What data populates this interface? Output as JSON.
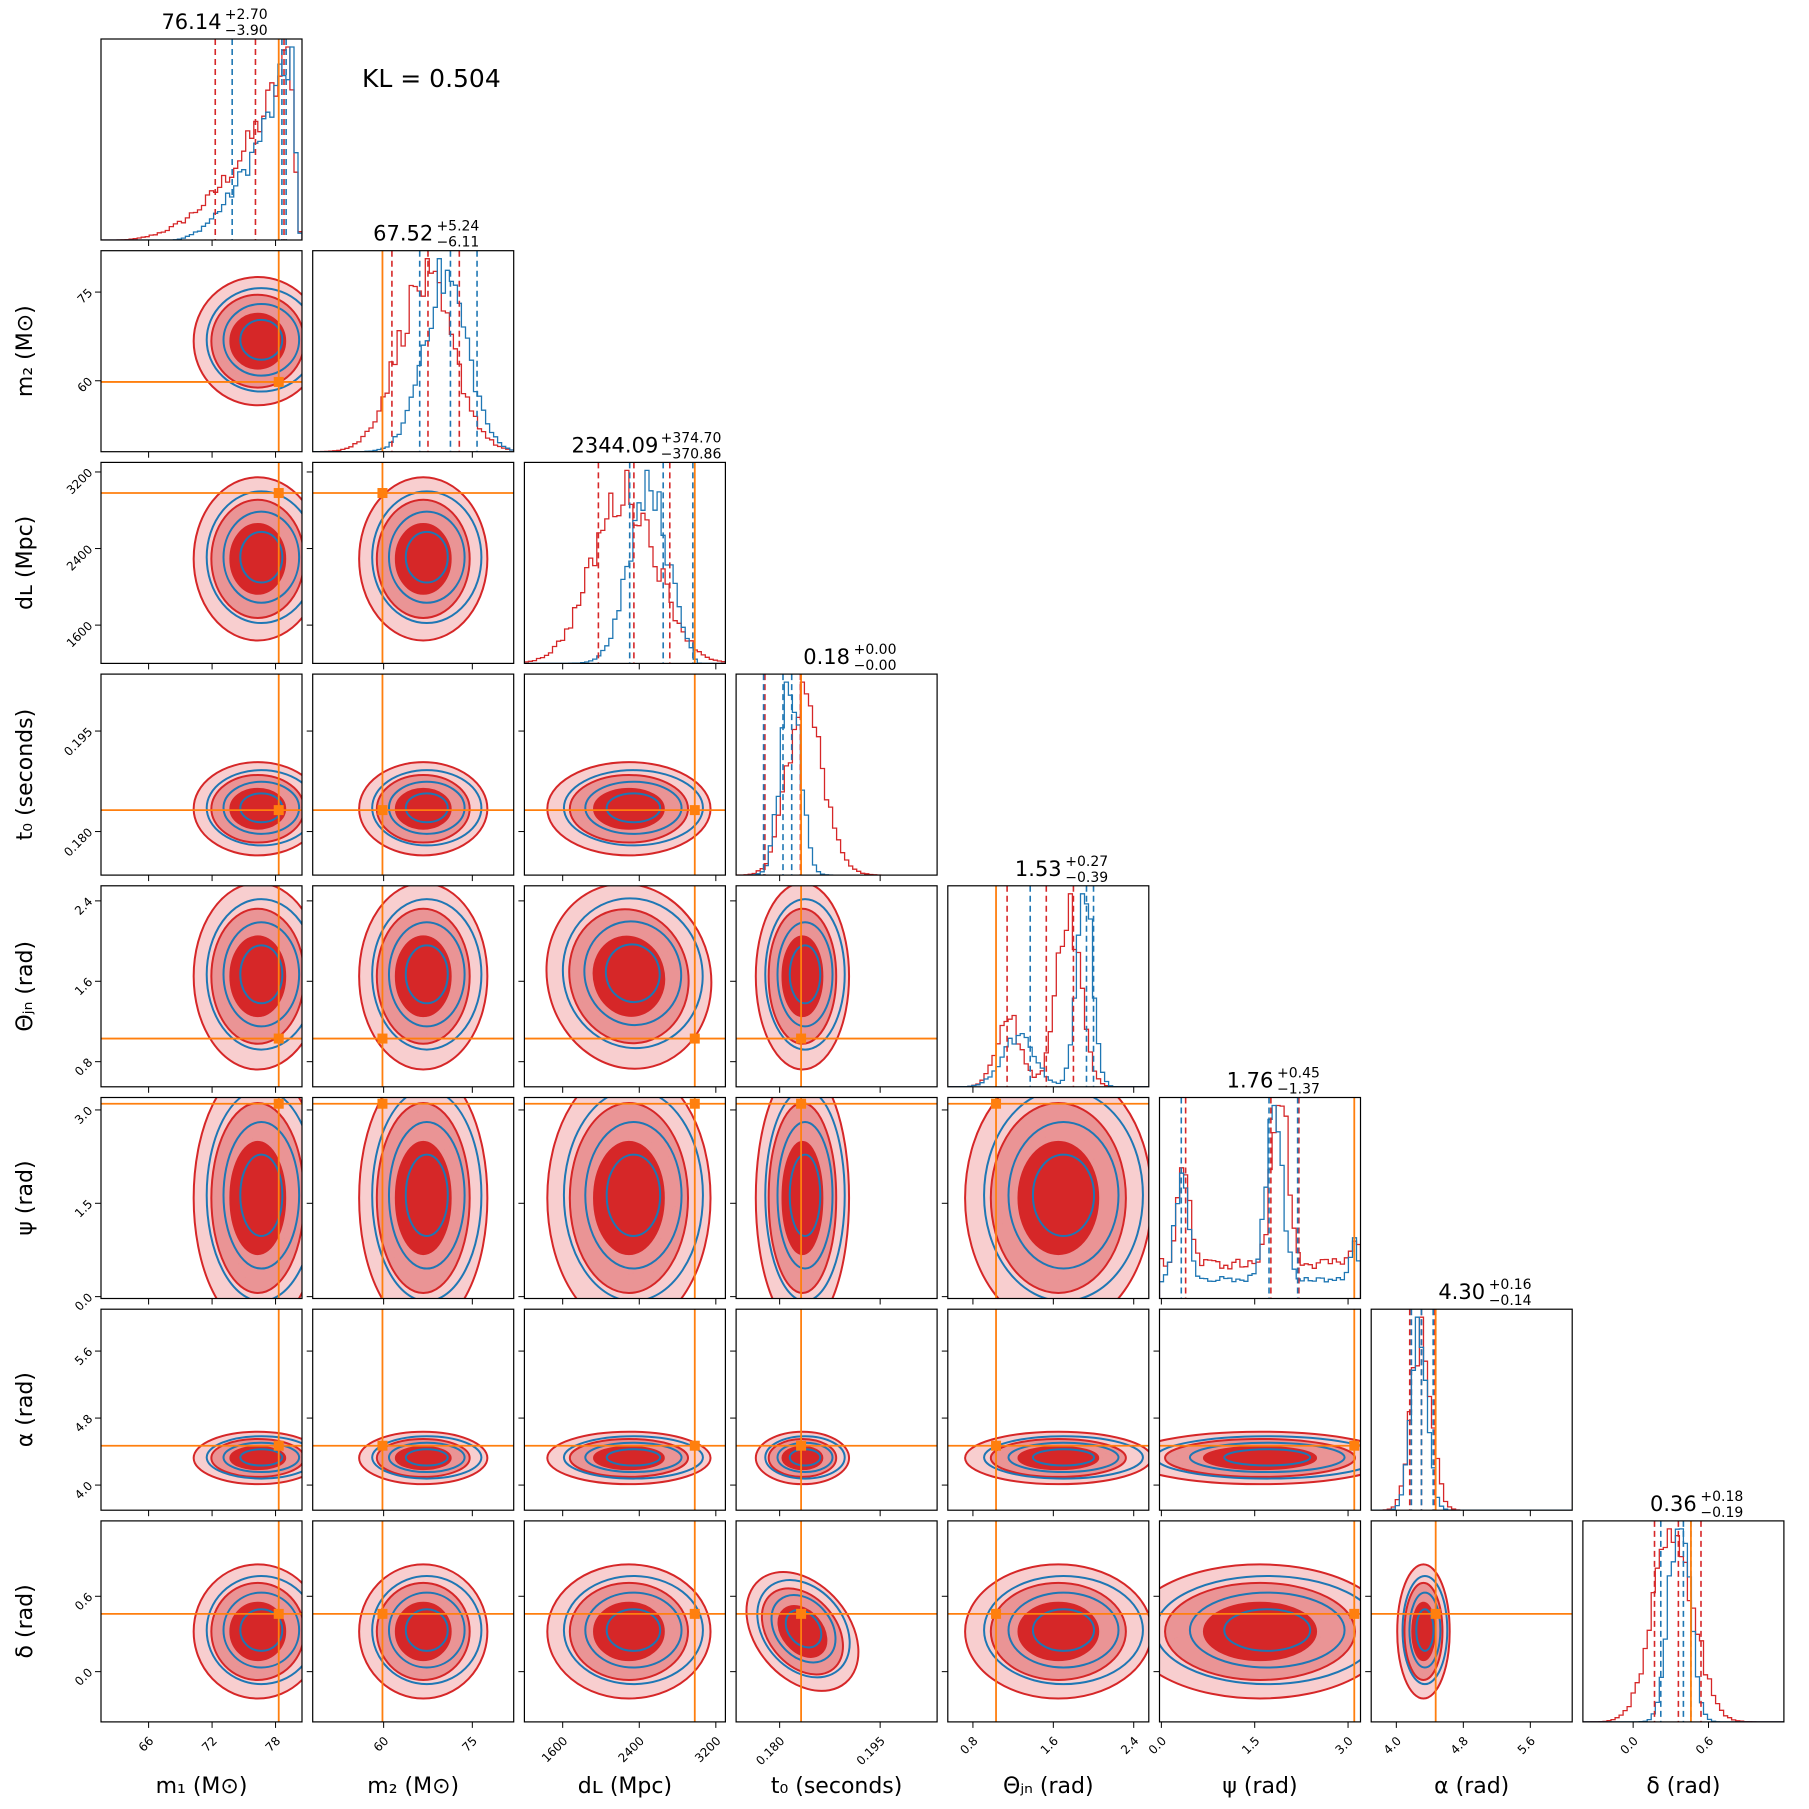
{
  "annotation": "KL = 0.504",
  "colors": {
    "red": "#d62728",
    "blue": "#1f77b4",
    "orange": "#ff7f0e"
  },
  "chart_data": {
    "type": "scatter",
    "subtype": "corner",
    "grid": false,
    "params": [
      {
        "key": "m1",
        "label": "m₁ (M⊙)",
        "range": [
          61.5,
          80.5
        ],
        "ticks": [
          "66",
          "72",
          "78"
        ],
        "tickvals": [
          66,
          72,
          78
        ],
        "title_median": "76.14",
        "title_plus": "+2.70",
        "title_minus": "−3.90",
        "truth": 78.3,
        "red_q": [
          72.3,
          76.1,
          78.8
        ],
        "blue_q": [
          73.9,
          78.6,
          79.0
        ]
      },
      {
        "key": "m2",
        "label": "m₂ (M⊙)",
        "range": [
          48,
          82
        ],
        "ticks": [
          "60",
          "75"
        ],
        "tickvals": [
          60,
          75
        ],
        "title_median": "67.52",
        "title_plus": "+5.24",
        "title_minus": "−6.11",
        "truth": 59.8,
        "red_q": [
          61.4,
          67.5,
          72.8
        ],
        "blue_q": [
          66.1,
          71.3,
          75.8
        ]
      },
      {
        "key": "dL",
        "label": "dʟ (Mpc)",
        "range": [
          1200,
          3300
        ],
        "ticks": [
          "1600",
          "2400",
          "3200"
        ],
        "tickvals": [
          1600,
          2400,
          3200
        ],
        "title_median": "2344.09",
        "title_plus": "+374.70",
        "title_minus": "−370.86",
        "truth": 2980,
        "red_q": [
          1973,
          2344,
          2719
        ],
        "blue_q": [
          2300,
          2650,
          2960
        ]
      },
      {
        "key": "t0",
        "label": "t₀ (seconds)",
        "range": [
          0.1735,
          0.2035
        ],
        "ticks": [
          "0.180",
          "0.195"
        ],
        "tickvals": [
          0.18,
          0.195
        ],
        "title_median": "0.18",
        "title_plus": "+0.00",
        "title_minus": "−0.00",
        "truth": 0.1832,
        "red_q": [
          0.1778,
          0.1831,
          0.1832
        ],
        "blue_q": [
          0.1776,
          0.1805,
          0.1818
        ]
      },
      {
        "key": "thetajn",
        "label": "Θⱼₙ (rad)",
        "range": [
          0.55,
          2.55
        ],
        "ticks": [
          "0.8",
          "1.6",
          "2.4"
        ],
        "tickvals": [
          0.8,
          1.6,
          2.4
        ],
        "title_median": "1.53",
        "title_plus": "+0.27",
        "title_minus": "−0.39",
        "truth": 1.03,
        "red_q": [
          1.14,
          1.53,
          1.8
        ],
        "blue_q": [
          1.37,
          1.93,
          2.0
        ]
      },
      {
        "key": "psi",
        "label": "ψ (rad)",
        "range": [
          -0.03,
          3.2
        ],
        "ticks": [
          "0.0",
          "1.5",
          "3.0"
        ],
        "tickvals": [
          0.0,
          1.5,
          3.0
        ],
        "title_median": "1.76",
        "title_plus": "+0.45",
        "title_minus": "−1.37",
        "truth": 3.1,
        "red_q": [
          0.39,
          1.76,
          2.21
        ],
        "blue_q": [
          0.32,
          1.73,
          2.19
        ]
      },
      {
        "key": "alpha",
        "label": "α (rad)",
        "range": [
          3.7,
          6.1
        ],
        "ticks": [
          "4.0",
          "4.8",
          "5.6"
        ],
        "tickvals": [
          4.0,
          4.8,
          5.6
        ],
        "title_median": "4.30",
        "title_plus": "+0.16",
        "title_minus": "−0.14",
        "truth": 4.47,
        "red_q": [
          4.16,
          4.3,
          4.46
        ],
        "blue_q": [
          4.18,
          4.3,
          4.44
        ]
      },
      {
        "key": "delta",
        "label": "δ (rad)",
        "range": [
          -0.4,
          1.2
        ],
        "ticks": [
          "0.0",
          "0.6"
        ],
        "tickvals": [
          0.0,
          0.6
        ],
        "title_median": "0.36",
        "title_plus": "+0.18",
        "title_minus": "−0.19",
        "truth": 0.46,
        "red_q": [
          0.17,
          0.36,
          0.54
        ],
        "blue_q": [
          0.22,
          0.4,
          0.46
        ]
      }
    ],
    "series": [
      {
        "name": "",
        "color": "#d62728",
        "fill": true
      },
      {
        "name": "",
        "color": "#1f77b4",
        "fill": false
      }
    ],
    "truth_color": "#ff7f0e"
  }
}
